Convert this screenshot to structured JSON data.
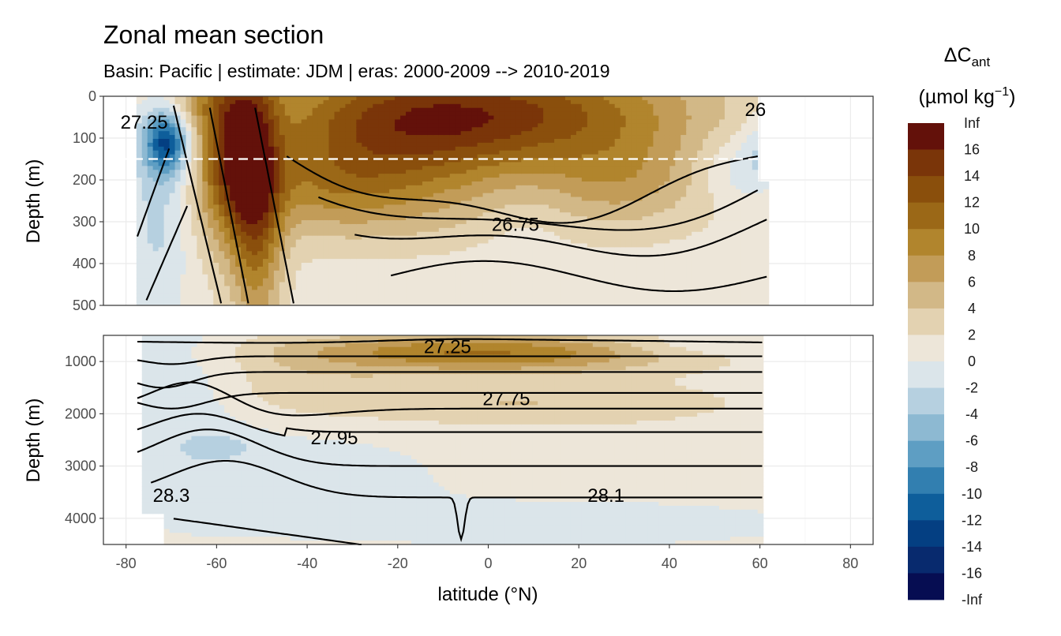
{
  "chart_data": {
    "type": "heatmap",
    "title": "Zonal mean section",
    "subtitle": "Basin: Pacific | estimate: JDM  | eras: 2000-2009 --> 2010-2019",
    "xlabel": "latitude (°N)",
    "ylabel": "Depth (m)",
    "x_ticks": [
      "-80",
      "-60",
      "-40",
      "-20",
      "0",
      "20",
      "40",
      "60",
      "80"
    ],
    "x_tick_values": [
      -80,
      -60,
      -40,
      -20,
      0,
      20,
      40,
      60,
      80
    ],
    "xlim": [
      -85,
      85
    ],
    "grid": true,
    "panels": [
      {
        "name": "upper",
        "ylim": [
          500,
          0
        ],
        "y_ticks": [
          "0",
          "100",
          "200",
          "300",
          "400",
          "500"
        ],
        "y_tick_values": [
          0,
          100,
          200,
          300,
          400,
          500
        ],
        "reference_line_depth": 150,
        "contour_labels": [
          {
            "text": "27.25",
            "lat": -76,
            "depth": 60
          },
          {
            "text": "26.75",
            "lat": 6,
            "depth": 305
          },
          {
            "text": "26",
            "lat": 59,
            "depth": 30
          }
        ]
      },
      {
        "name": "lower",
        "ylim": [
          4500,
          500
        ],
        "y_ticks": [
          "1000",
          "2000",
          "3000",
          "4000"
        ],
        "y_tick_values": [
          1000,
          2000,
          3000,
          4000
        ],
        "contour_labels": [
          {
            "text": "27.25",
            "lat": -9,
            "depth": 700
          },
          {
            "text": "27.75",
            "lat": 4,
            "depth": 1700
          },
          {
            "text": "27.95",
            "lat": -34,
            "depth": 2450
          },
          {
            "text": "28.3",
            "lat": -70,
            "depth": 3550
          },
          {
            "text": "28.1",
            "lat": 26,
            "depth": 3550
          }
        ]
      }
    ],
    "legend": {
      "title_main": "ΔC",
      "title_sub": "ant",
      "units_pre": "(µmol kg",
      "units_sup": "−1",
      "units_post": ")",
      "placement": "right",
      "labels": [
        "Inf",
        "16",
        "14",
        "12",
        "10",
        "8",
        "6",
        "4",
        "2",
        "0",
        "-2",
        "-4",
        "-6",
        "-8",
        "-10",
        "-12",
        "-14",
        "-16",
        "-Inf"
      ],
      "colors": [
        "#63110a",
        "#7a3509",
        "#8a4f0c",
        "#9b6817",
        "#b1852d",
        "#c29c58",
        "#d2b887",
        "#e3d2b1",
        "#ede6d9",
        "#dbe5ea",
        "#b6d0e0",
        "#8db9d2",
        "#5e9ec3",
        "#327fb0",
        "#0e5e9b",
        "#043f82",
        "#082a6e",
        "#060d52"
      ]
    }
  }
}
